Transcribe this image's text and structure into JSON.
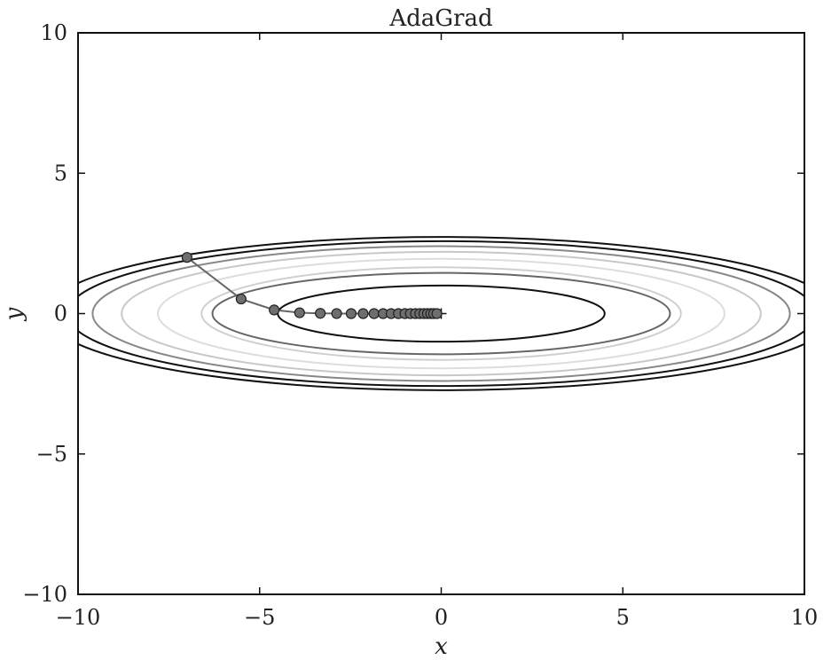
{
  "chart_data": {
    "type": "line",
    "title": "AdaGrad",
    "xlabel": "x",
    "ylabel": "y",
    "xlim": [
      -10,
      10
    ],
    "ylim": [
      -10,
      10
    ],
    "xticks": [
      -10,
      -5,
      0,
      5,
      10
    ],
    "yticks": [
      -10,
      -5,
      0,
      5,
      10
    ],
    "xtick_labels": [
      "−10",
      "−5",
      "0",
      "5",
      "10"
    ],
    "ytick_labels": [
      "−10",
      "−5",
      "0",
      "5",
      "10"
    ],
    "grid": false,
    "contours": [
      {
        "a": 10.9,
        "b": 2.73,
        "color": "#111111"
      },
      {
        "a": 10.3,
        "b": 2.58,
        "color": "#111111"
      },
      {
        "a": 9.6,
        "b": 2.4,
        "color": "#888888"
      },
      {
        "a": 8.8,
        "b": 2.2,
        "color": "#c8c8c8"
      },
      {
        "a": 7.8,
        "b": 1.95,
        "color": "#dddddd"
      },
      {
        "a": 6.6,
        "b": 1.65,
        "color": "#cfcfcf"
      },
      {
        "a": 6.3,
        "b": 1.45,
        "color": "#666666"
      },
      {
        "a": 4.5,
        "b": 1.0,
        "color": "#111111"
      }
    ],
    "series": [
      {
        "x": [
          -7.0,
          -5.51,
          -4.6,
          -3.9,
          -3.33,
          -2.88,
          -2.48,
          -2.15,
          -1.85,
          -1.6,
          -1.38,
          -1.18,
          -1.0,
          -0.85,
          -0.71,
          -0.59,
          -0.48,
          -0.38,
          -0.29,
          -0.21,
          -0.12
        ],
        "y": [
          2.0,
          0.52,
          0.13,
          0.03,
          0.008,
          0.002,
          0,
          0,
          0,
          0,
          0,
          0,
          0,
          0,
          0,
          0,
          0,
          0,
          0,
          0,
          0
        ],
        "line_color": "#666666",
        "marker_color": "#6e6e6e"
      }
    ],
    "target_marker": {
      "x": 0,
      "y": 0
    }
  }
}
